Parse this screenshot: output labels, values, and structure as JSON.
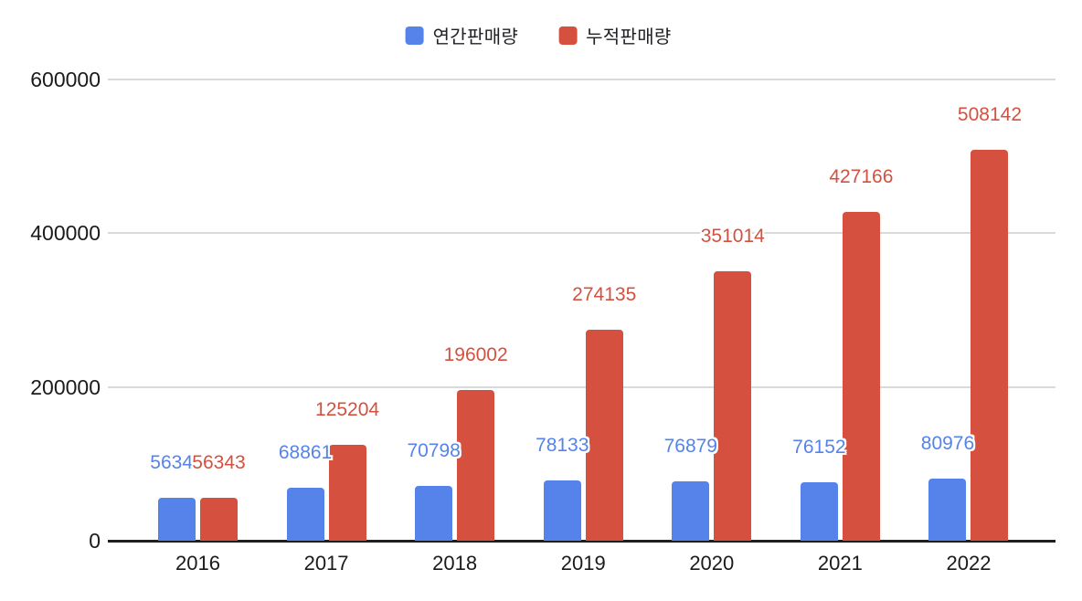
{
  "chart_data": {
    "type": "bar",
    "title": "",
    "categories": [
      "2016",
      "2017",
      "2018",
      "2019",
      "2020",
      "2021",
      "2022"
    ],
    "series": [
      {
        "name": "연간판매량",
        "color": "#5583EA",
        "values": [
          56343,
          68861,
          70798,
          78133,
          76879,
          76152,
          80976
        ]
      },
      {
        "name": "누적판매량",
        "color": "#D5503F",
        "values": [
          56343,
          125204,
          196002,
          274135,
          351014,
          427166,
          508142
        ]
      }
    ],
    "ylim": [
      0,
      600000
    ],
    "yticks": [
      0,
      200000,
      400000,
      600000
    ],
    "grid": "horizontal",
    "legend_position": "top",
    "data_labels": true
  },
  "colors": {
    "background": "#FFFFFF",
    "gridline": "#D9D9D9",
    "axis": "#1F1F1F",
    "tick_text": "#1B1B1B"
  }
}
